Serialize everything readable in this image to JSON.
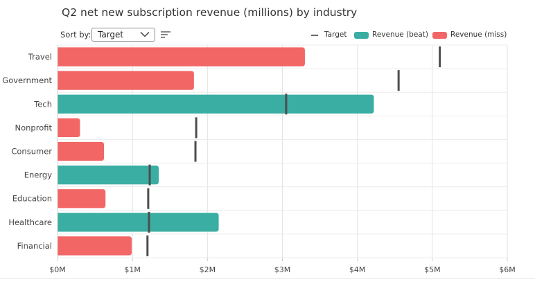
{
  "chart_data": {
    "type": "bar",
    "orientation": "horizontal",
    "title": "Q2 net new subscription revenue (millions) by industry",
    "categories": [
      "Travel",
      "Government",
      "Tech",
      "Nonprofit",
      "Consumer",
      "Energy",
      "Education",
      "Healthcare",
      "Financial"
    ],
    "series": [
      {
        "name": "Revenue",
        "values": [
          3.3,
          1.82,
          4.22,
          0.3,
          0.62,
          1.35,
          0.64,
          2.15,
          0.99
        ]
      },
      {
        "name": "Target",
        "values": [
          5.1,
          4.55,
          3.05,
          1.85,
          1.84,
          1.23,
          1.21,
          1.22,
          1.2
        ]
      }
    ],
    "xlim": [
      0,
      6
    ],
    "x_ticks": [
      "$0M",
      "$1M",
      "$2M",
      "$3M",
      "$4M",
      "$5M",
      "$6M"
    ],
    "grid": true,
    "legend_position": "top-right",
    "colors": {
      "beat": "#3aaea3",
      "miss": "#f26666",
      "target": "#4d4d4d"
    }
  },
  "controls": {
    "sort_label": "Sort by:",
    "sort_value": "Target",
    "sort_icon": "sort-lines-icon",
    "chevron_icon": "chevron-down-icon"
  },
  "legend": {
    "target_label": "Target",
    "beat_label": "Revenue (beat)",
    "miss_label": "Revenue (miss)"
  }
}
